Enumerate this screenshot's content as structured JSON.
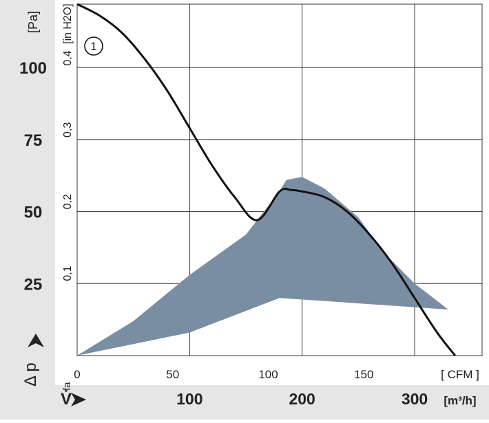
{
  "chart_data": {
    "type": "line",
    "x_unit_primary": "[m³/h]",
    "x_unit_secondary": "[ CFM ]",
    "y_unit_primary": "[Pa]",
    "y_unit_secondary": "[in H2O]",
    "x_axis_symbol": "V̇",
    "y_axis_symbol": "Δ p",
    "y_axis_subscript": "fa",
    "xlim_m3h": [
      0,
      360
    ],
    "ylim_pa": [
      0,
      122
    ],
    "x_ticks_m3h": [
      "100",
      "200",
      "300"
    ],
    "x_ticks_m3h_values": [
      100,
      200,
      300
    ],
    "x_ticks_cfm": [
      "0",
      "50",
      "100",
      "150"
    ],
    "x_ticks_cfm_values": [
      0,
      50,
      100,
      150
    ],
    "y_ticks_pa": [
      "25",
      "50",
      "75",
      "100"
    ],
    "y_ticks_pa_values": [
      25,
      50,
      75,
      100
    ],
    "y_ticks_inh2o": [
      "0,1",
      "0,2",
      "0,3",
      "0,4"
    ],
    "y_ticks_inh2o_values": [
      0.1,
      0.2,
      0.3,
      0.4
    ],
    "grid": true,
    "series": [
      {
        "name": "1",
        "color": "#111111",
        "x": [
          0,
          20,
          40,
          60,
          80,
          100,
          120,
          140,
          160,
          180,
          190,
          200,
          220,
          240,
          260,
          280,
          300,
          320,
          336
        ],
        "y": [
          122,
          118,
          112,
          103,
          92,
          79,
          66,
          55,
          47,
          57,
          57.5,
          57,
          55,
          50,
          42,
          32,
          20,
          8,
          0
        ]
      }
    ],
    "operating_area": {
      "color": "#7a8ea3",
      "x": [
        0,
        50,
        100,
        150,
        180,
        186,
        200,
        220,
        250,
        272,
        300,
        330,
        180,
        100,
        50,
        0
      ],
      "y": [
        0,
        12,
        28,
        42,
        57,
        61,
        62,
        58,
        48,
        36,
        25,
        16,
        20,
        8,
        4,
        0
      ]
    }
  }
}
